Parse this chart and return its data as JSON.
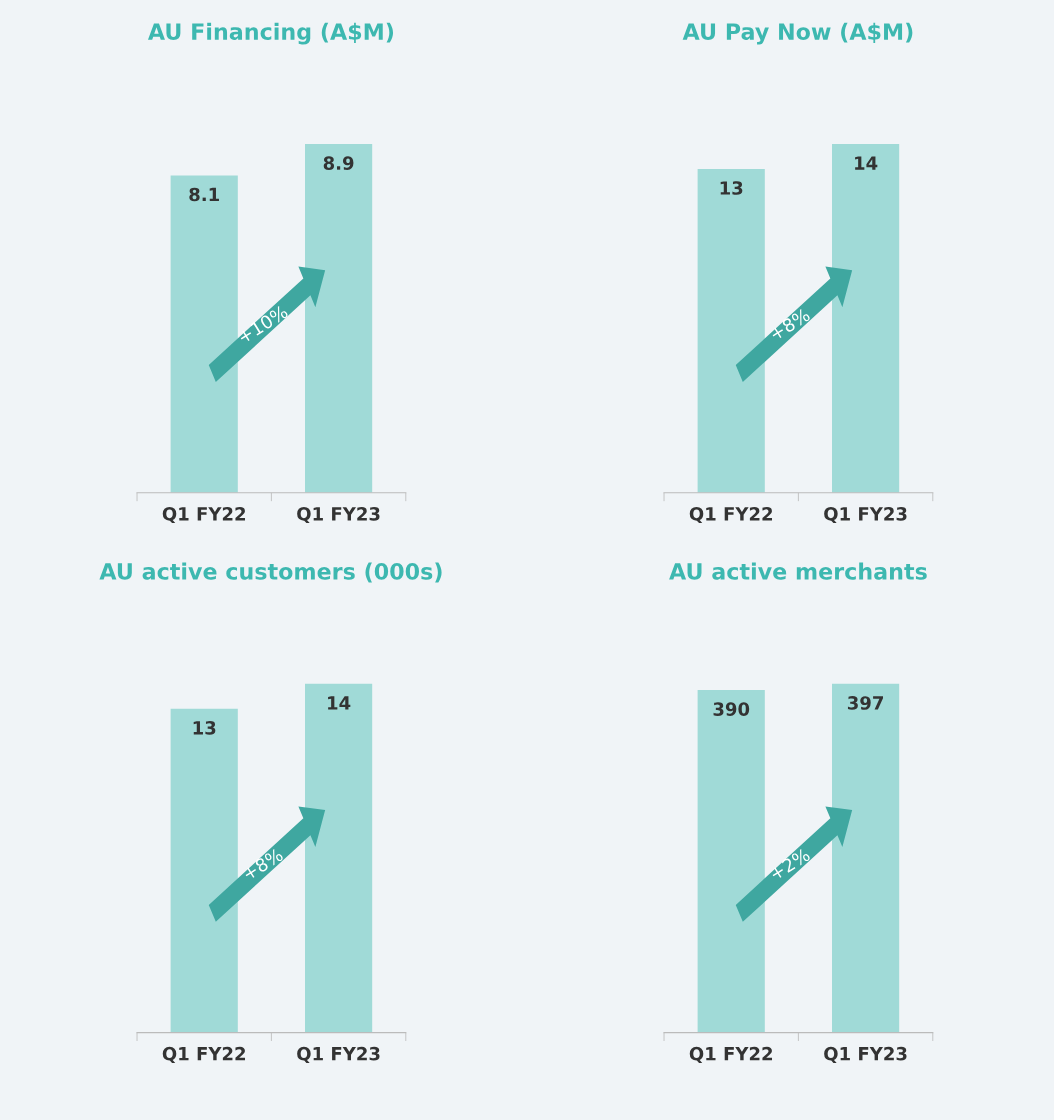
{
  "chart_data": [
    {
      "type": "bar",
      "title": "AU Financing (A$M)",
      "categories": [
        "Q1 FY22",
        "Q1 FY23"
      ],
      "values": [
        8.1,
        8.9
      ],
      "color": "#a0dad7",
      "data_labels": true,
      "annotations": [
        "+10%"
      ]
    },
    {
      "type": "bar",
      "title": "AU Pay Now (A$M)",
      "categories": [
        "Q1 FY22",
        "Q1 FY23"
      ],
      "values": [
        13,
        14
      ],
      "color": "#a0dad7",
      "data_labels": true,
      "annotations": [
        "+8%"
      ]
    },
    {
      "type": "bar",
      "title": "AU active customers (000s)",
      "categories": [
        "Q1 FY22",
        "Q1 FY23"
      ],
      "values": [
        13,
        14
      ],
      "color": "#a0dad7",
      "data_labels": true,
      "annotations": [
        "+8%"
      ]
    },
    {
      "type": "bar",
      "title": "AU active merchants",
      "categories": [
        "Q1 FY22",
        "Q1 FY23"
      ],
      "values": [
        390,
        397
      ],
      "color": "#a0dad7",
      "data_labels": true,
      "annotations": [
        "+2%"
      ]
    }
  ]
}
